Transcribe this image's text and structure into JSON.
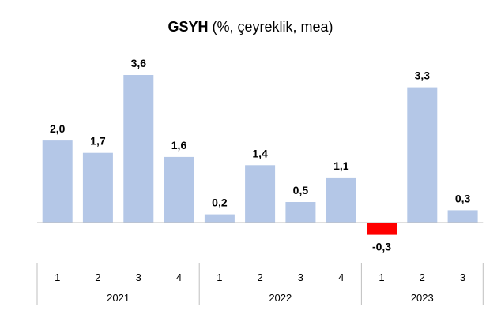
{
  "chart_data": {
    "type": "bar",
    "title_bold": "GSYH",
    "title_rest": " (%, çeyreklik, mea)",
    "xlabel": "",
    "ylabel": "",
    "categories": [
      "1",
      "2",
      "3",
      "4",
      "1",
      "2",
      "3",
      "4",
      "1",
      "2",
      "3"
    ],
    "groups": [
      {
        "label": "2021",
        "count": 4
      },
      {
        "label": "2022",
        "count": 4
      },
      {
        "label": "2023",
        "count": 3
      }
    ],
    "values": [
      2.0,
      1.7,
      3.6,
      1.6,
      0.2,
      1.4,
      0.5,
      1.1,
      -0.3,
      3.3,
      0.3
    ],
    "data_labels": [
      "2,0",
      "1,7",
      "3,6",
      "1,6",
      "0,2",
      "1,4",
      "0,5",
      "1,1",
      "-0,3",
      "3,3",
      "0,3"
    ],
    "ylim": [
      -0.3,
      3.6
    ],
    "grid": false,
    "legend": "none",
    "colors": {
      "positive": "#b4c7e7",
      "negative": "#ff0000",
      "axis": "#bfbfbf"
    }
  }
}
